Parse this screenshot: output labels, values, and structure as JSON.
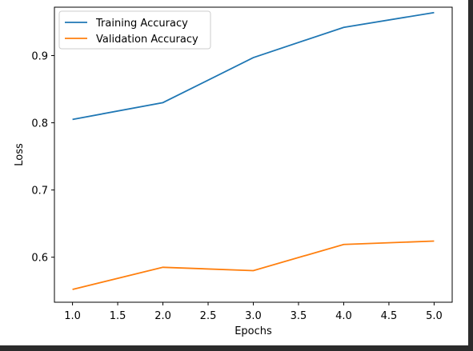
{
  "chart_data": {
    "type": "line",
    "x": [
      1,
      2,
      3,
      4,
      5
    ],
    "xlabel": "Epochs",
    "ylabel": "Loss",
    "xlim": [
      0.8,
      5.2
    ],
    "ylim": [
      0.533,
      0.972
    ],
    "xticks": [
      "1.0",
      "1.5",
      "2.0",
      "2.5",
      "3.0",
      "3.5",
      "4.0",
      "4.5",
      "5.0"
    ],
    "yticks": [
      "0.6",
      "0.7",
      "0.8",
      "0.9"
    ],
    "grid": false,
    "legend_position": "upper-left",
    "series": [
      {
        "name": "Training Accuracy",
        "color": "#1f77b4",
        "values": [
          0.805,
          0.83,
          0.897,
          0.942,
          0.964
        ]
      },
      {
        "name": "Validation Accuracy",
        "color": "#ff7f0e",
        "values": [
          0.552,
          0.585,
          0.58,
          0.619,
          0.624
        ]
      }
    ]
  }
}
